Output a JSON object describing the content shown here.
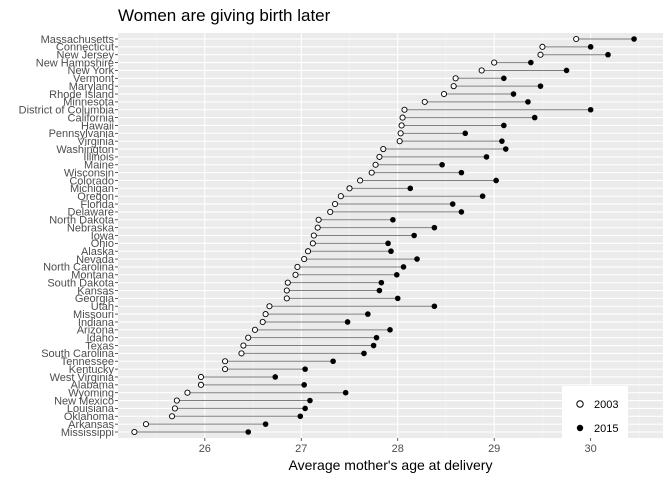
{
  "chart_data": {
    "type": "dumbbell",
    "title": "Women are giving birth later",
    "xlabel": "Average mother's age at delivery",
    "ylabel": "",
    "xlim": [
      25.1,
      30.75
    ],
    "xticks": [
      26,
      27,
      28,
      29,
      30
    ],
    "grid": true,
    "legend_position": "bottom-right",
    "series": [
      {
        "name": "2003",
        "marker": "open-circle"
      },
      {
        "name": "2015",
        "marker": "filled-circle"
      }
    ],
    "states": [
      {
        "state": "Massachusetts",
        "y2003": 29.85,
        "y2015": 30.45
      },
      {
        "state": "Connecticut",
        "y2003": 29.5,
        "y2015": 30.0
      },
      {
        "state": "New Jersey",
        "y2003": 29.48,
        "y2015": 30.18
      },
      {
        "state": "New Hampshire",
        "y2003": 29.0,
        "y2015": 29.38
      },
      {
        "state": "New York",
        "y2003": 28.87,
        "y2015": 29.75
      },
      {
        "state": "Vermont",
        "y2003": 28.6,
        "y2015": 29.1
      },
      {
        "state": "Maryland",
        "y2003": 28.58,
        "y2015": 29.48
      },
      {
        "state": "Rhode Island",
        "y2003": 28.48,
        "y2015": 29.2
      },
      {
        "state": "Minnesota",
        "y2003": 28.28,
        "y2015": 29.35
      },
      {
        "state": "District of Columbia",
        "y2003": 28.07,
        "y2015": 30.0
      },
      {
        "state": "California",
        "y2003": 28.05,
        "y2015": 29.42
      },
      {
        "state": "Hawaii",
        "y2003": 28.04,
        "y2015": 29.1
      },
      {
        "state": "Pennsylvania",
        "y2003": 28.03,
        "y2015": 28.7
      },
      {
        "state": "Virginia",
        "y2003": 28.02,
        "y2015": 29.08
      },
      {
        "state": "Washington",
        "y2003": 27.85,
        "y2015": 29.12
      },
      {
        "state": "Illinois",
        "y2003": 27.81,
        "y2015": 28.92
      },
      {
        "state": "Maine",
        "y2003": 27.77,
        "y2015": 28.46
      },
      {
        "state": "Wisconsin",
        "y2003": 27.73,
        "y2015": 28.66
      },
      {
        "state": "Colorado",
        "y2003": 27.61,
        "y2015": 29.02
      },
      {
        "state": "Michigan",
        "y2003": 27.5,
        "y2015": 28.13
      },
      {
        "state": "Oregon",
        "y2003": 27.41,
        "y2015": 28.88
      },
      {
        "state": "Florida",
        "y2003": 27.35,
        "y2015": 28.57
      },
      {
        "state": "Delaware",
        "y2003": 27.3,
        "y2015": 28.66
      },
      {
        "state": "North Dakota",
        "y2003": 27.18,
        "y2015": 27.95
      },
      {
        "state": "Nebraska",
        "y2003": 27.17,
        "y2015": 28.38
      },
      {
        "state": "Iowa",
        "y2003": 27.13,
        "y2015": 28.17
      },
      {
        "state": "Ohio",
        "y2003": 27.12,
        "y2015": 27.9
      },
      {
        "state": "Alaska",
        "y2003": 27.07,
        "y2015": 27.93
      },
      {
        "state": "Nevada",
        "y2003": 27.03,
        "y2015": 28.2
      },
      {
        "state": "North Carolina",
        "y2003": 26.96,
        "y2015": 28.06
      },
      {
        "state": "Montana",
        "y2003": 26.94,
        "y2015": 27.99
      },
      {
        "state": "South Dakota",
        "y2003": 26.86,
        "y2015": 27.83
      },
      {
        "state": "Kansas",
        "y2003": 26.85,
        "y2015": 27.81
      },
      {
        "state": "Georgia",
        "y2003": 26.85,
        "y2015": 28.0
      },
      {
        "state": "Utah",
        "y2003": 26.67,
        "y2015": 28.38
      },
      {
        "state": "Missouri",
        "y2003": 26.63,
        "y2015": 27.69
      },
      {
        "state": "Indiana",
        "y2003": 26.6,
        "y2015": 27.48
      },
      {
        "state": "Arizona",
        "y2003": 26.52,
        "y2015": 27.92
      },
      {
        "state": "Idaho",
        "y2003": 26.45,
        "y2015": 27.78
      },
      {
        "state": "Texas",
        "y2003": 26.4,
        "y2015": 27.75
      },
      {
        "state": "South Carolina",
        "y2003": 26.38,
        "y2015": 27.65
      },
      {
        "state": "Tennessee",
        "y2003": 26.21,
        "y2015": 27.33
      },
      {
        "state": "Kentucky",
        "y2003": 26.21,
        "y2015": 27.04
      },
      {
        "state": "West Virginia",
        "y2003": 25.96,
        "y2015": 26.73
      },
      {
        "state": "Alabama",
        "y2003": 25.96,
        "y2015": 27.03
      },
      {
        "state": "Wyoming",
        "y2003": 25.82,
        "y2015": 27.46
      },
      {
        "state": "New Mexico",
        "y2003": 25.71,
        "y2015": 27.09
      },
      {
        "state": "Louisiana",
        "y2003": 25.69,
        "y2015": 27.04
      },
      {
        "state": "Oklahoma",
        "y2003": 25.66,
        "y2015": 26.99
      },
      {
        "state": "Arkansas",
        "y2003": 25.39,
        "y2015": 26.63
      },
      {
        "state": "Mississippi",
        "y2003": 25.27,
        "y2015": 26.45
      }
    ]
  }
}
